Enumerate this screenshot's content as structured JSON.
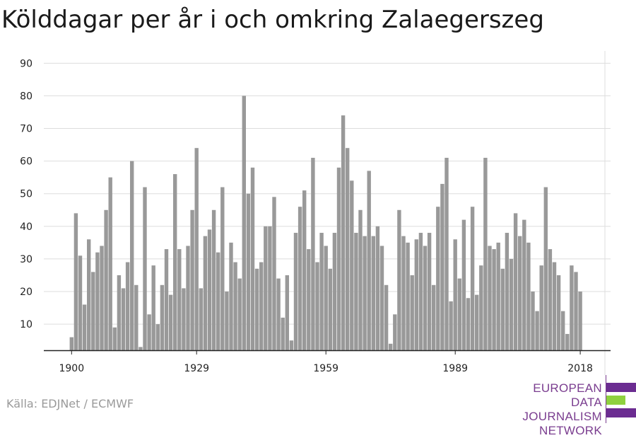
{
  "title": "Kölddagar per år i och omkring Zalaegerszeg",
  "source": "Källa: EDJNet / ECMWF",
  "logo": {
    "lines": [
      "EUROPEAN",
      "DATA JOURNALISM",
      "NETWORK"
    ],
    "colors": {
      "purple": "#6b2c91",
      "green": "#8fd13f",
      "text": "#7a3d8f"
    }
  },
  "colors": {
    "bar": "#999999",
    "grid": "#dddddd",
    "axis": "#222222"
  },
  "chart_data": {
    "type": "bar",
    "title": "Kölddagar per år i och omkring Zalaegerszeg",
    "xlabel": "",
    "ylabel": "",
    "ylim": [
      2,
      90
    ],
    "yticks": [
      10,
      20,
      30,
      40,
      50,
      60,
      70,
      80,
      90
    ],
    "xticks": [
      1900,
      1929,
      1959,
      1989,
      2018
    ],
    "grid": true,
    "x_start": 1900,
    "x_end": 2018,
    "values": [
      6,
      44,
      31,
      16,
      36,
      26,
      32,
      34,
      45,
      55,
      9,
      25,
      21,
      29,
      60,
      22,
      3,
      52,
      13,
      28,
      10,
      22,
      33,
      19,
      56,
      33,
      21,
      34,
      45,
      64,
      21,
      37,
      39,
      45,
      32,
      52,
      20,
      35,
      29,
      24,
      80,
      50,
      58,
      27,
      29,
      40,
      40,
      49,
      24,
      12,
      25,
      5,
      38,
      46,
      51,
      33,
      61,
      29,
      38,
      34,
      27,
      38,
      58,
      74,
      64,
      54,
      38,
      45,
      37,
      57,
      37,
      40,
      34,
      22,
      4,
      13,
      45,
      37,
      35,
      25,
      36,
      38,
      34,
      38,
      22,
      46,
      53,
      61,
      17,
      36,
      24,
      42,
      18,
      46,
      19,
      28,
      61,
      34,
      33,
      35,
      27,
      38,
      30,
      44,
      37,
      42,
      35,
      20,
      14,
      28,
      52,
      33,
      29,
      25,
      14,
      7,
      28,
      26,
      20
    ]
  }
}
